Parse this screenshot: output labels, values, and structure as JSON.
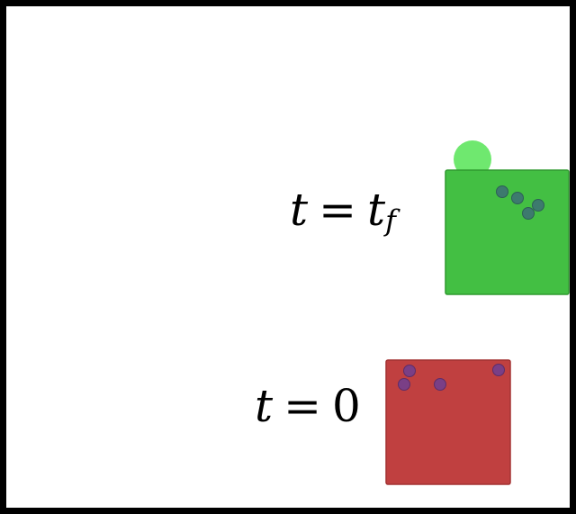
{
  "states": {
    "final": {
      "var": "t",
      "rel": "=",
      "value_main": "t",
      "value_sub": "f",
      "box_color": "#43bf43",
      "box_edge": "#2f9a2f",
      "ball_color": "#6fe86f",
      "dot_color": "#3d7a6e",
      "dot_count": 4
    },
    "initial": {
      "var": "t",
      "rel": "=",
      "value_main": "0",
      "box_color": "#c04040",
      "box_edge": "#a33232",
      "dot_color": "#7a3f86",
      "dot_count": 4
    }
  }
}
